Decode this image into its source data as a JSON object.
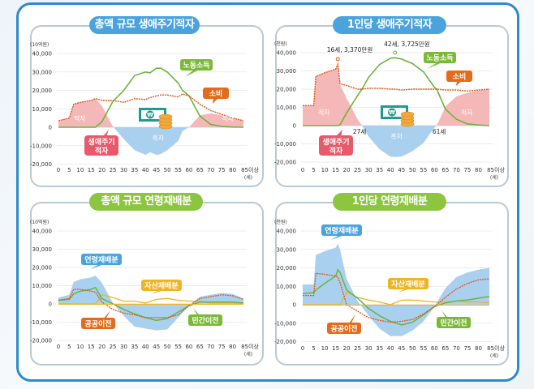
{
  "panels": [
    {
      "title": "총액 규모 생애주기적자",
      "title_color": "#4aa3dd"
    },
    {
      "title": "1인당 생애주기적자",
      "title_color": "#4aa3dd"
    },
    {
      "title": "총액 규모 연령재배분",
      "title_color": "#8cc63e"
    },
    {
      "title": "1인당 연령재배분",
      "title_color": "#8cc63e"
    }
  ],
  "axes": {
    "x_ticks": [
      "0",
      "5",
      "10",
      "15",
      "20",
      "25",
      "30",
      "35",
      "40",
      "45",
      "50",
      "55",
      "60",
      "65",
      "70",
      "75",
      "80",
      "85이상"
    ],
    "x_unit": "(세)",
    "y_ticks": [
      "40,000",
      "30,000",
      "20,000",
      "10,000",
      "0",
      "-10,000",
      "-20,000"
    ],
    "unit_total": "(10억원)",
    "unit_per_capita": "(천원)"
  },
  "labels": {
    "labor_income": "노동소득",
    "consumption": "소비",
    "lifecycle_deficit": "생애주기",
    "lifecycle_deficit2": "적자",
    "deficit": "적자",
    "surplus": "흑자",
    "age_reallocation": "연령재배분",
    "asset_reallocation": "자산재배분",
    "public_transfer": "공공이전",
    "private_transfer": "민간이전",
    "peak_consumption": "16세, 3,370만원",
    "peak_labor": "42세, 3,725만원",
    "age_27": "27세",
    "age_61": "61세"
  },
  "colors": {
    "frame": "#2e8bc9",
    "labor_income": "#6db33f",
    "consumption": "#e0561b",
    "deficit_fill": "#f5b8b8",
    "surplus_fill": "#a9d0ef",
    "asset": "#f0b323",
    "public": "#e0561b",
    "private": "#6db33f",
    "lifecycle_label": "#e85a6a"
  },
  "chart_data": [
    {
      "type": "line",
      "title": "총액 규모 생애주기적자",
      "xlabel": "(세)",
      "ylabel": "(10억원)",
      "ylim": [
        -20000,
        40000
      ],
      "x": [
        0,
        5,
        7,
        10,
        15,
        17,
        20,
        25,
        30,
        35,
        40,
        42,
        45,
        47,
        50,
        55,
        57,
        60,
        65,
        70,
        75,
        80,
        85
      ],
      "series": [
        {
          "name": "소비",
          "values": [
            3500,
            5000,
            12500,
            13500,
            14500,
            15500,
            14500,
            14500,
            13500,
            15500,
            15000,
            16000,
            17000,
            17500,
            17500,
            16500,
            18000,
            17000,
            12500,
            9000,
            7000,
            5000,
            3500
          ]
        },
        {
          "name": "노동소득",
          "values": [
            0,
            0,
            0,
            0,
            0,
            0,
            3000,
            14000,
            20000,
            28000,
            30000,
            29500,
            32000,
            32000,
            30000,
            24000,
            20000,
            17000,
            6000,
            1500,
            500,
            100,
            0
          ]
        },
        {
          "name": "생애주기적자",
          "values": [
            3500,
            5000,
            12500,
            13500,
            14500,
            15500,
            11500,
            500,
            -6500,
            -12500,
            -15000,
            -13500,
            -15000,
            -14500,
            -12500,
            -7500,
            -2000,
            0,
            6500,
            7500,
            6500,
            4900,
            3500
          ]
        }
      ]
    },
    {
      "type": "line",
      "title": "1인당 생애주기적자",
      "xlabel": "(세)",
      "ylabel": "(천원)",
      "ylim": [
        -20000,
        40000
      ],
      "annotations": [
        "16세, 3,370만원",
        "42세, 3,725만원",
        "27세",
        "61세"
      ],
      "x": [
        0,
        5,
        6,
        10,
        15,
        16,
        17,
        20,
        25,
        27,
        30,
        35,
        40,
        42,
        45,
        50,
        55,
        60,
        61,
        65,
        70,
        75,
        80,
        85
      ],
      "series": [
        {
          "name": "소비",
          "values": [
            11000,
            11000,
            27000,
            29000,
            31000,
            33700,
            23000,
            22000,
            20000,
            20000,
            20500,
            20500,
            20000,
            20000,
            19500,
            20000,
            20000,
            20000,
            20000,
            19500,
            19500,
            19000,
            19500,
            20000
          ]
        },
        {
          "name": "노동소득",
          "values": [
            0,
            0,
            0,
            0,
            0,
            0,
            500,
            7000,
            16500,
            20000,
            26500,
            33500,
            37000,
            37250,
            36500,
            34000,
            29500,
            21000,
            20000,
            9000,
            3500,
            1000,
            300,
            0
          ]
        },
        {
          "name": "생애주기적자",
          "values": [
            11000,
            11000,
            27000,
            29000,
            31000,
            33700,
            22500,
            15000,
            3500,
            0,
            -6000,
            -13000,
            -17000,
            -17250,
            -17000,
            -14000,
            -9500,
            -1000,
            0,
            10500,
            16000,
            18000,
            19200,
            20000
          ]
        }
      ]
    },
    {
      "type": "line",
      "title": "총액 규모 연령재배분",
      "xlabel": "(세)",
      "ylabel": "(10억원)",
      "ylim": [
        -20000,
        40000
      ],
      "x": [
        0,
        5,
        7,
        10,
        15,
        17,
        20,
        25,
        30,
        35,
        40,
        45,
        50,
        55,
        60,
        65,
        70,
        75,
        80,
        85
      ],
      "series": [
        {
          "name": "연령재배분",
          "values": [
            3500,
            5000,
            12000,
            13500,
            14500,
            15500,
            11500,
            500,
            -6500,
            -12500,
            -13500,
            -14500,
            -14000,
            -7500,
            -1000,
            4000,
            5000,
            6000,
            5500,
            3000
          ]
        },
        {
          "name": "자산재배분",
          "values": [
            0,
            0,
            0,
            0,
            0,
            0,
            5000,
            3500,
            1500,
            1500,
            500,
            2500,
            3000,
            2000,
            1500,
            1500,
            500,
            500,
            500,
            0
          ]
        },
        {
          "name": "공공이전",
          "values": [
            2000,
            3000,
            8000,
            8000,
            7000,
            6500,
            1000,
            -3000,
            -5000,
            -6000,
            -7500,
            -7500,
            -7500,
            -6000,
            -1000,
            3000,
            4000,
            5000,
            4500,
            2500
          ]
        },
        {
          "name": "민간이전",
          "values": [
            2000,
            2500,
            5500,
            7000,
            8000,
            9000,
            3000,
            0,
            -3000,
            -5500,
            -7500,
            -9000,
            -8000,
            -4500,
            -1000,
            1000,
            1000,
            1000,
            1000,
            500
          ]
        }
      ]
    },
    {
      "type": "line",
      "title": "1인당 연령재배분",
      "xlabel": "(세)",
      "ylabel": "(천원)",
      "ylim": [
        -20000,
        40000
      ],
      "x": [
        0,
        5,
        6,
        10,
        15,
        16,
        17,
        20,
        25,
        30,
        35,
        40,
        45,
        50,
        55,
        60,
        65,
        70,
        75,
        80,
        85
      ],
      "series": [
        {
          "name": "연령재배분",
          "values": [
            11000,
            11000,
            27000,
            29000,
            31000,
            33000,
            30000,
            14000,
            2000,
            -6000,
            -13000,
            -17000,
            -17000,
            -14000,
            -9000,
            -1000,
            9000,
            15000,
            17500,
            19000,
            20000
          ]
        },
        {
          "name": "자산재배분",
          "values": [
            0,
            0,
            0,
            0,
            0,
            0,
            0,
            7000,
            4000,
            2500,
            1500,
            0,
            2500,
            2500,
            2000,
            1500,
            1500,
            2000,
            1500,
            1500,
            1000
          ]
        },
        {
          "name": "공공이전",
          "values": [
            5000,
            5000,
            17000,
            16500,
            15500,
            15000,
            12000,
            0,
            -3500,
            -7000,
            -8500,
            -9500,
            -9000,
            -8000,
            -5000,
            -1000,
            4000,
            8500,
            11500,
            13500,
            14000
          ]
        },
        {
          "name": "민간이전",
          "values": [
            6000,
            6500,
            8000,
            11500,
            15500,
            19000,
            17500,
            8000,
            3500,
            -2000,
            -6000,
            -9000,
            -11000,
            -9500,
            -5500,
            -1000,
            1000,
            2000,
            2500,
            3500,
            4500
          ]
        }
      ]
    }
  ]
}
